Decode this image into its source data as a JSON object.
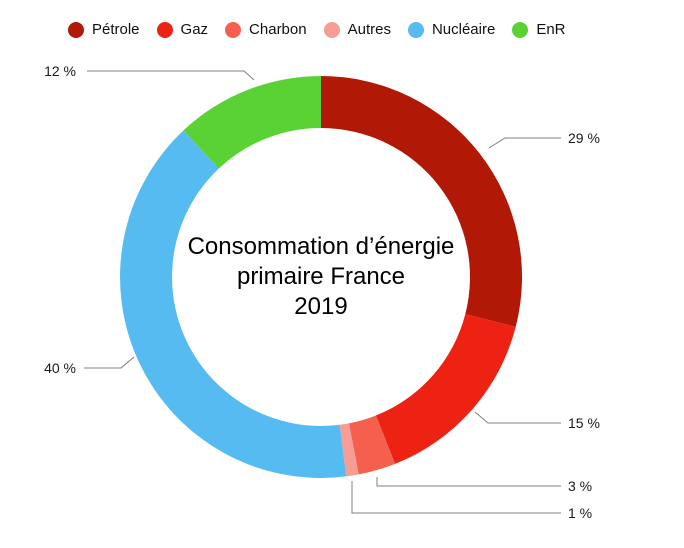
{
  "page": {
    "background": "#FFFFFF"
  },
  "chart_data": {
    "type": "pie",
    "subtype": "donut",
    "title": "Consommation d’énergie primaire France 2019",
    "center_title_lines": [
      "Consommation d’énergie",
      "primaire France",
      "2019"
    ],
    "categories": [
      "Pétrole",
      "Gaz",
      "Charbon",
      "Autres",
      "Nucléaire",
      "EnR"
    ],
    "values": [
      29,
      15,
      3,
      1,
      40,
      12
    ],
    "unit": "%",
    "slice_labels": [
      "29 %",
      "15 %",
      "3 %",
      "1 %",
      "40 %",
      "12 %"
    ],
    "colors": [
      "#B21806",
      "#EE2213",
      "#F4604D",
      "#F89D96",
      "#55BBF1",
      "#5BD233"
    ],
    "legend_position": "top",
    "start_angle_deg": 0,
    "direction": "clockwise",
    "inner_radius_ratio": 0.74,
    "label_line_color": "#7F7F7F",
    "label_text_color": "#1A1A1A"
  }
}
